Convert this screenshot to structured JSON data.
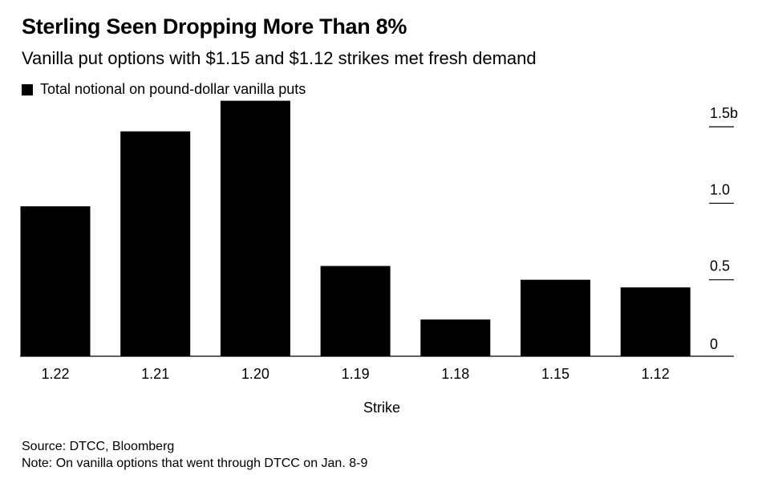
{
  "title": "Sterling Seen Dropping More Than 8%",
  "subtitle": "Vanilla put options with $1.15 and $1.12 strikes met fresh demand",
  "legend_label": "Total notional on pound-dollar vanilla puts",
  "source": "Source: DTCC, Bloomberg",
  "note": "Note: On vanilla options that went through DTCC on Jan. 8-9",
  "chart_data": {
    "type": "bar",
    "categories": [
      "1.22",
      "1.21",
      "1.20",
      "1.19",
      "1.18",
      "1.15",
      "1.12"
    ],
    "series": [
      {
        "name": "Total notional on pound-dollar vanilla puts",
        "values": [
          0.98,
          1.47,
          1.67,
          0.59,
          0.24,
          0.5,
          0.45
        ]
      }
    ],
    "xlabel": "Strike",
    "ylabel": "",
    "ylim": [
      0,
      1.5
    ],
    "yticks": [
      {
        "value": 0,
        "label": "0"
      },
      {
        "value": 0.5,
        "label": "0.5"
      },
      {
        "value": 1.0,
        "label": "1.0"
      },
      {
        "value": 1.5,
        "label": "1.5b"
      }
    ],
    "bar_color": "#000000",
    "axis_position": "right",
    "grid": false,
    "legend_position": "top-left"
  }
}
